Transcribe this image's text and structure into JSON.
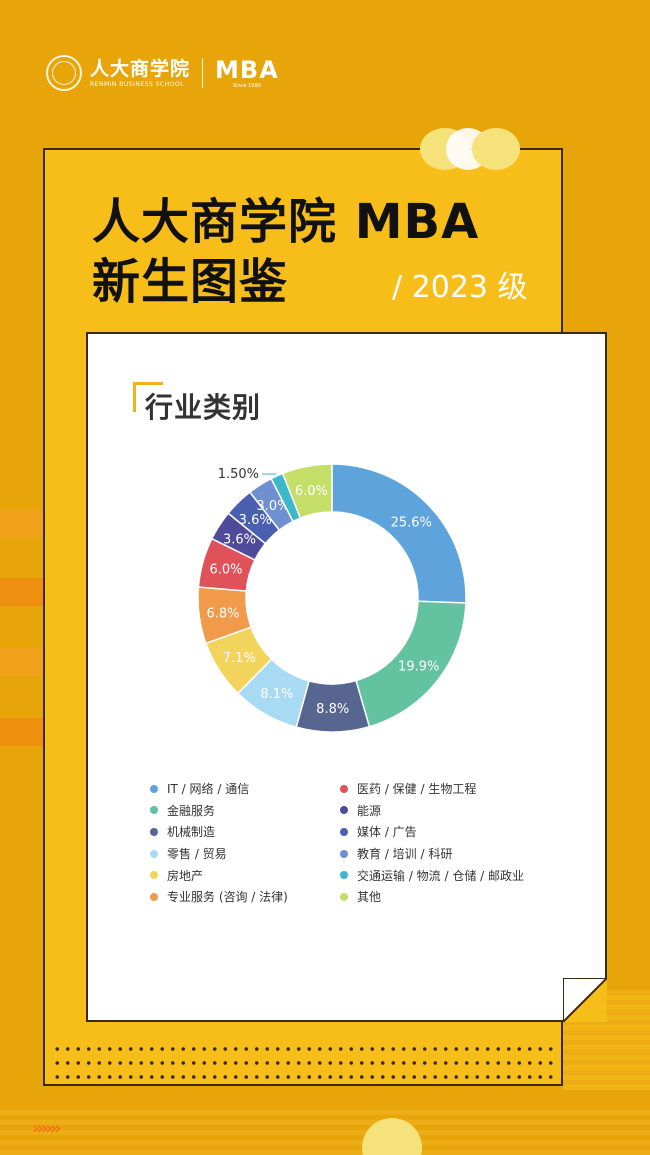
{
  "header": {
    "school_name": "人大商学院",
    "school_name_en": "RENMIN BUSINESS SCHOOL",
    "mba_logo": "MBA",
    "mba_since": "Since 1990"
  },
  "poster": {
    "title_line1": "人大商学院 MBA",
    "title_line2": "新生图鉴",
    "grade": "/ 2023 级",
    "section_title": "行业类别"
  },
  "colors": {
    "background": "#E8A50A",
    "card_yellow": "#F7BE19",
    "accent_orange": "#F3741E"
  },
  "chart_data": {
    "type": "pie",
    "donut": true,
    "title": "行业类别",
    "legend_position": "bottom",
    "slices": [
      {
        "label": "IT / 网络 / 通信",
        "value": 25.6,
        "display": "25.6%",
        "color": "#5FA3DC"
      },
      {
        "label": "金融服务",
        "value": 19.9,
        "display": "19.9%",
        "color": "#63C29F"
      },
      {
        "label": "机械制造",
        "value": 8.8,
        "display": "8.8%",
        "color": "#576690"
      },
      {
        "label": "零售 / 贸易",
        "value": 8.1,
        "display": "8.1%",
        "color": "#A9DAF3"
      },
      {
        "label": "房地产",
        "value": 7.1,
        "display": "7.1%",
        "color": "#F2D45C"
      },
      {
        "label": "专业服务 (咨询 / 法律)",
        "value": 6.8,
        "display": "6.8%",
        "color": "#F09A4A"
      },
      {
        "label": "医药 / 保健 / 生物工程",
        "value": 6.0,
        "display": "6.0%",
        "color": "#E0525A"
      },
      {
        "label": "能源",
        "value": 3.6,
        "display": "3.6%",
        "color": "#4F4A9A"
      },
      {
        "label": "媒体 / 广告",
        "value": 3.6,
        "display": "3.6%",
        "color": "#4A5FB0"
      },
      {
        "label": "教育 / 培训 / 科研",
        "value": 3.0,
        "display": "3.0%",
        "color": "#6E8FD0"
      },
      {
        "label": "交通运输 / 物流 / 仓储 / 邮政业",
        "value": 1.5,
        "display": "1.50%",
        "color": "#3CB8CB"
      },
      {
        "label": "其他",
        "value": 6.0,
        "display": "6.0%",
        "color": "#C5DE68"
      }
    ]
  }
}
